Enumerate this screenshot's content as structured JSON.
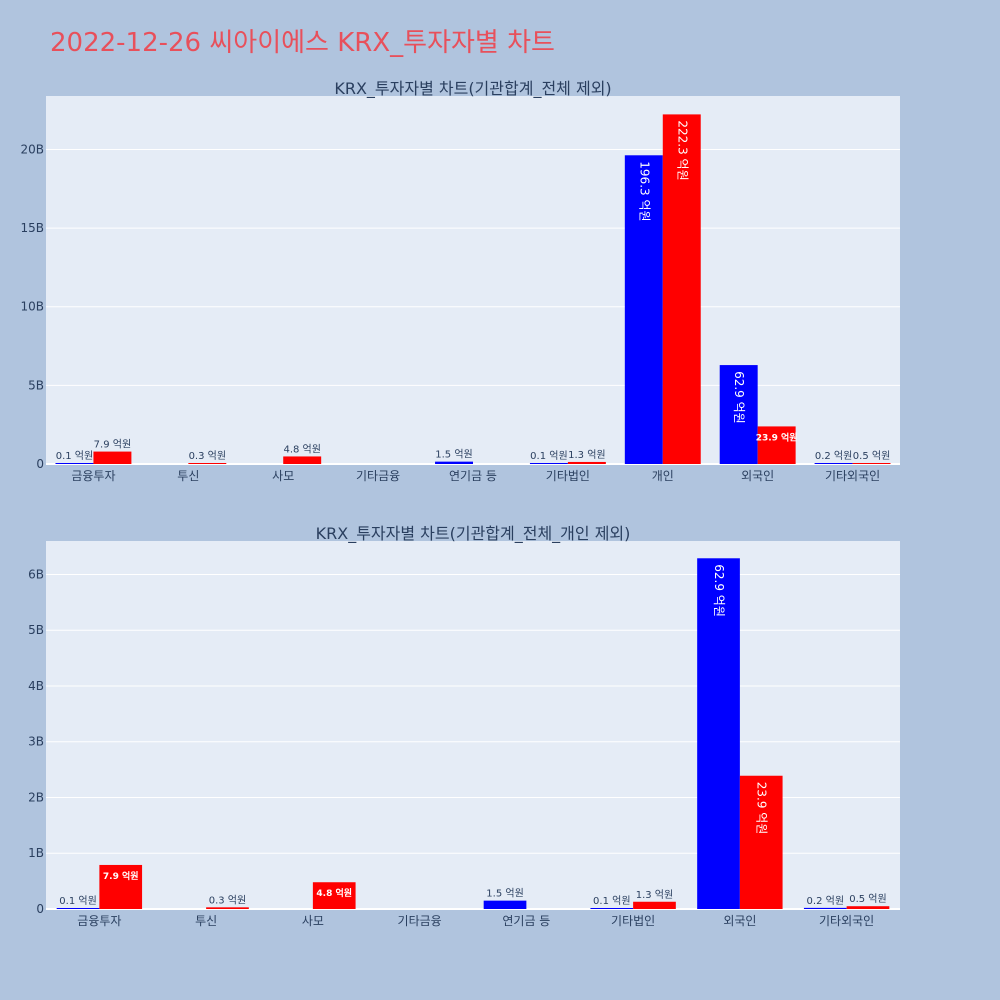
{
  "page": {
    "title": "2022-12-26 씨아이에스 KRX_투자자별 차트"
  },
  "colors": {
    "series_a": "#0000ff",
    "series_b": "#ff0000",
    "plot_bg": "#e5ecf6",
    "paper_bg": "#b0c4de",
    "title": "#e8505b"
  },
  "chart_data": [
    {
      "type": "bar",
      "title": "KRX_투자자별 차트(기관합계_전체 제외)",
      "categories": [
        "금융투자",
        "투신",
        "사모",
        "기타금융",
        "연기금 등",
        "기타법인",
        "개인",
        "외국인",
        "기타외국인"
      ],
      "series": [
        {
          "values": [
            0.01,
            null,
            null,
            null,
            0.15,
            0.01,
            19.63,
            6.29,
            0.02
          ],
          "labels": [
            "0.1 억원",
            "",
            "",
            "",
            "1.5 억원",
            "0.1 억원",
            "196.3 억원",
            "62.9 억원",
            "0.2 억원"
          ]
        },
        {
          "values": [
            0.79,
            0.03,
            0.48,
            null,
            null,
            0.13,
            22.23,
            2.39,
            0.05
          ],
          "labels": [
            "7.9 억원",
            "0.3 억원",
            "4.8 억원",
            "",
            "",
            "1.3 억원",
            "222.3 억원",
            "23.9 억원",
            "0.5 억원"
          ]
        }
      ],
      "yticks": [
        "0",
        "5B",
        "10B",
        "15B",
        "20B"
      ],
      "ytick_values": [
        0,
        5,
        10,
        15,
        20
      ],
      "ylim": [
        0,
        23.4
      ],
      "unit": "billions"
    },
    {
      "type": "bar",
      "title": "KRX_투자자별 차트(기관합계_전체_개인 제외)",
      "categories": [
        "금융투자",
        "투신",
        "사모",
        "기타금융",
        "연기금 등",
        "기타법인",
        "외국인",
        "기타외국인"
      ],
      "series": [
        {
          "values": [
            0.01,
            null,
            null,
            null,
            0.15,
            0.01,
            6.29,
            0.02
          ],
          "labels": [
            "0.1 억원",
            "",
            "",
            "",
            "1.5 억원",
            "0.1 억원",
            "62.9 억원",
            "0.2 억원"
          ]
        },
        {
          "values": [
            0.79,
            0.03,
            0.48,
            null,
            null,
            0.13,
            2.39,
            0.05
          ],
          "labels": [
            "7.9 억원",
            "0.3 억원",
            "4.8 억원",
            "",
            "",
            "1.3 억원",
            "23.9 억원",
            "0.5 억원"
          ]
        }
      ],
      "yticks": [
        "0",
        "1B",
        "2B",
        "3B",
        "4B",
        "5B",
        "6B"
      ],
      "ytick_values": [
        0,
        1,
        2,
        3,
        4,
        5,
        6
      ],
      "ylim": [
        0,
        6.6
      ],
      "unit": "billions"
    }
  ]
}
